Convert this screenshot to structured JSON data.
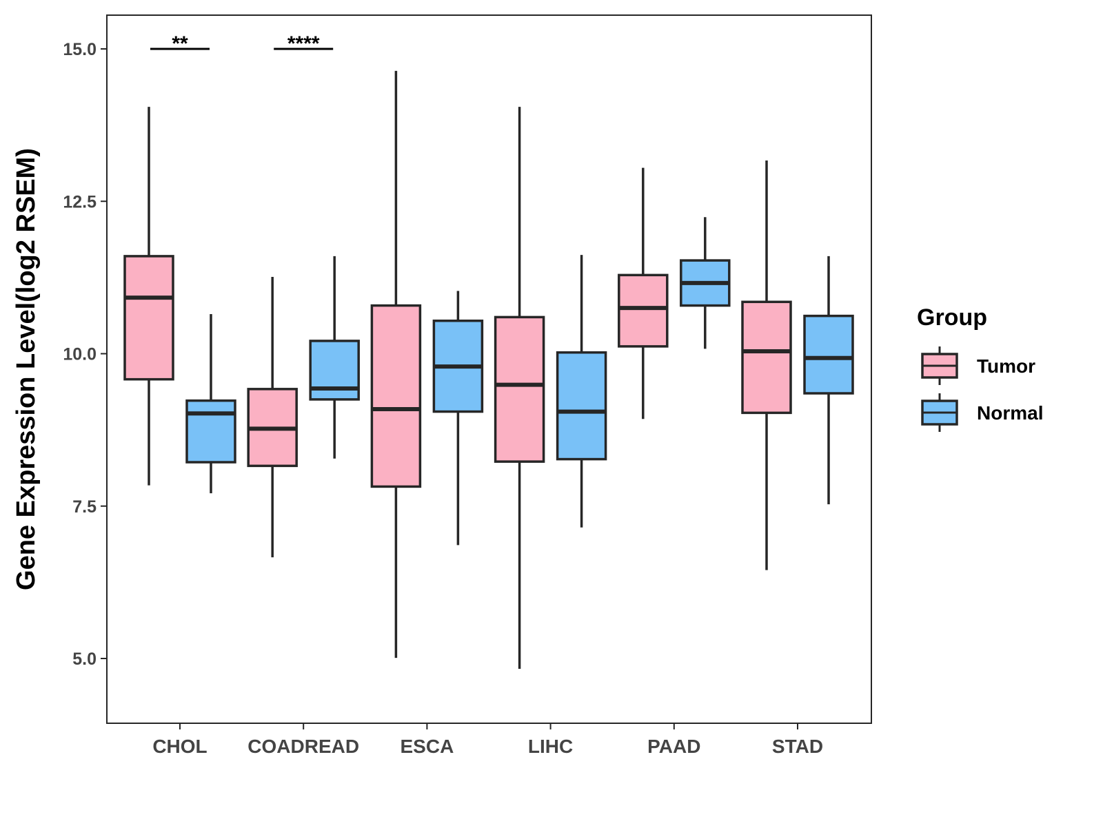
{
  "chart_data": {
    "type": "boxplot",
    "title": "",
    "xlabel": "",
    "ylabel": "Gene Expression Level(log2 RSEM)",
    "ylim": [
      3.94,
      15.55
    ],
    "yticks": [
      "5.0",
      "7.5",
      "10.0",
      "12.5",
      "15.0"
    ],
    "ytick_values": [
      5.0,
      7.5,
      10.0,
      12.5,
      15.0
    ],
    "grid": false,
    "categories": [
      "CHOL",
      "COADREAD",
      "ESCA",
      "LIHC",
      "PAAD",
      "STAD"
    ],
    "legend": {
      "title": "Group",
      "placement": "right",
      "entries": [
        "Tumor",
        "Normal"
      ]
    },
    "colors": {
      "Tumor": "#FBB1C3",
      "Normal": "#79C1F7",
      "line": "#262626"
    },
    "series": [
      {
        "name": "Tumor",
        "boxes": [
          {
            "low": 7.84,
            "q1": 9.58,
            "median": 10.92,
            "q3": 11.6,
            "high": 14.05
          },
          {
            "low": 6.66,
            "q1": 8.16,
            "median": 8.77,
            "q3": 9.42,
            "high": 11.26
          },
          {
            "low": 5.01,
            "q1": 7.82,
            "median": 9.09,
            "q3": 10.79,
            "high": 14.64
          },
          {
            "low": 4.83,
            "q1": 8.23,
            "median": 9.49,
            "q3": 10.6,
            "high": 14.05
          },
          {
            "low": 8.93,
            "q1": 10.12,
            "median": 10.75,
            "q3": 11.29,
            "high": 13.05
          },
          {
            "low": 6.45,
            "q1": 9.03,
            "median": 10.04,
            "q3": 10.85,
            "high": 13.17
          }
        ]
      },
      {
        "name": "Normal",
        "boxes": [
          {
            "low": 7.71,
            "q1": 8.22,
            "median": 9.02,
            "q3": 9.23,
            "high": 10.65
          },
          {
            "low": 8.28,
            "q1": 9.25,
            "median": 9.43,
            "q3": 10.21,
            "high": 11.6
          },
          {
            "low": 6.86,
            "q1": 9.05,
            "median": 9.79,
            "q3": 10.54,
            "high": 11.03
          },
          {
            "low": 7.15,
            "q1": 8.27,
            "median": 9.05,
            "q3": 10.02,
            "high": 11.62
          },
          {
            "low": 10.08,
            "q1": 10.79,
            "median": 11.16,
            "q3": 11.53,
            "high": 12.24
          },
          {
            "low": 7.53,
            "q1": 9.35,
            "median": 9.93,
            "q3": 10.62,
            "high": 11.6
          }
        ]
      }
    ],
    "annotations": [
      {
        "category": "CHOL",
        "text": "**",
        "y": 15.0
      },
      {
        "category": "COADREAD",
        "text": "****",
        "y": 15.0
      }
    ]
  }
}
